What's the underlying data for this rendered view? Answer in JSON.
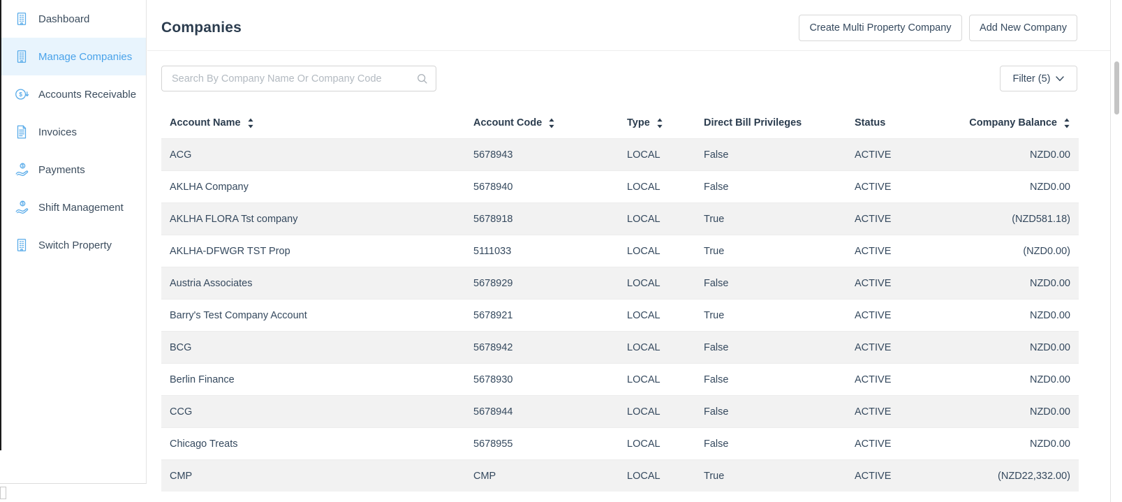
{
  "colors": {
    "accent_blue": "#4aa3ea",
    "icon_blue": "#58abe9",
    "selected_item_bg": "#e8f4fd",
    "text_navy": "#35495e",
    "shaded_row_bg": "#f2f2f2"
  },
  "sidebar": {
    "items": [
      {
        "label": "Dashboard",
        "icon": "building",
        "active": false
      },
      {
        "label": "Manage Companies",
        "icon": "building",
        "active": true
      },
      {
        "label": "Accounts Receivable",
        "icon": "dollar-circle",
        "active": false
      },
      {
        "label": "Invoices",
        "icon": "invoice",
        "active": false
      },
      {
        "label": "Payments",
        "icon": "hand-coin",
        "active": false
      },
      {
        "label": "Shift Management",
        "icon": "hand-coin",
        "active": false
      },
      {
        "label": "Switch Property",
        "icon": "building",
        "active": false
      }
    ]
  },
  "header": {
    "title": "Companies",
    "create_multi_button": "Create Multi Property Company",
    "add_new_button": "Add New Company"
  },
  "toolbar": {
    "search_placeholder": "Search By Company Name Or Company Code",
    "filter_label": "Filter (5)"
  },
  "table": {
    "columns": [
      {
        "label": "Account Name",
        "sortable": true
      },
      {
        "label": "Account Code",
        "sortable": true
      },
      {
        "label": "Type",
        "sortable": true
      },
      {
        "label": "Direct Bill Privileges",
        "sortable": false
      },
      {
        "label": "Status",
        "sortable": false
      },
      {
        "label": "Company Balance",
        "sortable": true
      }
    ],
    "rows": [
      {
        "account_name": "ACG",
        "account_code": "5678943",
        "type": "LOCAL",
        "direct_bill": "False",
        "status": "ACTIVE",
        "balance": "NZD0.00"
      },
      {
        "account_name": "AKLHA Company",
        "account_code": "5678940",
        "type": "LOCAL",
        "direct_bill": "False",
        "status": "ACTIVE",
        "balance": "NZD0.00"
      },
      {
        "account_name": "AKLHA FLORA Tst company",
        "account_code": "5678918",
        "type": "LOCAL",
        "direct_bill": "True",
        "status": "ACTIVE",
        "balance": "(NZD581.18)"
      },
      {
        "account_name": "AKLHA-DFWGR TST Prop",
        "account_code": "5111033",
        "type": "LOCAL",
        "direct_bill": "True",
        "status": "ACTIVE",
        "balance": "(NZD0.00)"
      },
      {
        "account_name": "Austria Associates",
        "account_code": "5678929",
        "type": "LOCAL",
        "direct_bill": "False",
        "status": "ACTIVE",
        "balance": "NZD0.00"
      },
      {
        "account_name": "Barry's Test Company Account",
        "account_code": "5678921",
        "type": "LOCAL",
        "direct_bill": "True",
        "status": "ACTIVE",
        "balance": "NZD0.00"
      },
      {
        "account_name": "BCG",
        "account_code": "5678942",
        "type": "LOCAL",
        "direct_bill": "False",
        "status": "ACTIVE",
        "balance": "NZD0.00"
      },
      {
        "account_name": "Berlin Finance",
        "account_code": "5678930",
        "type": "LOCAL",
        "direct_bill": "False",
        "status": "ACTIVE",
        "balance": "NZD0.00"
      },
      {
        "account_name": "CCG",
        "account_code": "5678944",
        "type": "LOCAL",
        "direct_bill": "False",
        "status": "ACTIVE",
        "balance": "NZD0.00"
      },
      {
        "account_name": "Chicago Treats",
        "account_code": "5678955",
        "type": "LOCAL",
        "direct_bill": "False",
        "status": "ACTIVE",
        "balance": "NZD0.00"
      },
      {
        "account_name": "CMP",
        "account_code": "CMP",
        "type": "LOCAL",
        "direct_bill": "True",
        "status": "ACTIVE",
        "balance": "(NZD22,332.00)"
      }
    ]
  }
}
